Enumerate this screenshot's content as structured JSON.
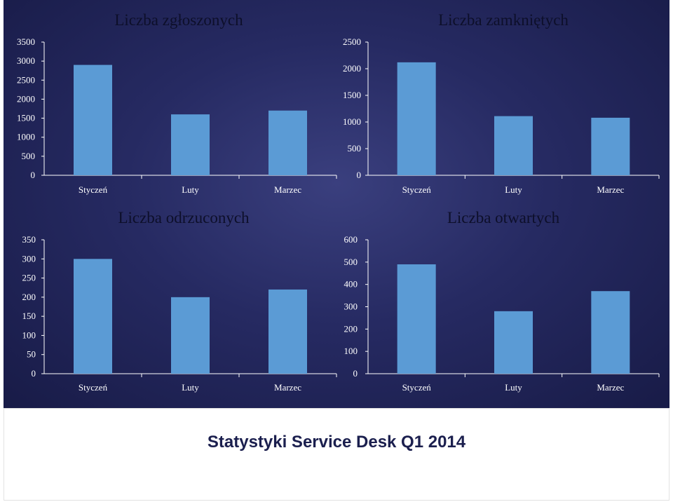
{
  "colors": {
    "bar": "#5b9bd5",
    "panel": "#262a62",
    "axis": "#ffffff",
    "title": "#0d0f2a"
  },
  "footer": {
    "title": "Statystyki Service Desk Q1 2014"
  },
  "chart_data": [
    {
      "type": "bar",
      "title": "Liczba zgłoszonych",
      "categories": [
        "Styczeń",
        "Luty",
        "Marzec"
      ],
      "values": [
        2900,
        1600,
        1700
      ],
      "ylim": [
        0,
        3500
      ],
      "yticks": [
        0,
        500,
        1000,
        1500,
        2000,
        2500,
        3000,
        3500
      ],
      "grid": false,
      "legend": "none"
    },
    {
      "type": "bar",
      "title": "Liczba zamkniętych",
      "categories": [
        "Styczeń",
        "Luty",
        "Marzec"
      ],
      "values": [
        2120,
        1110,
        1080
      ],
      "ylim": [
        0,
        2500
      ],
      "yticks": [
        0,
        500,
        1000,
        1500,
        2000,
        2500
      ],
      "grid": false,
      "legend": "none"
    },
    {
      "type": "bar",
      "title": "Liczba odrzuconych",
      "categories": [
        "Styczeń",
        "Luty",
        "Marzec"
      ],
      "values": [
        300,
        200,
        220
      ],
      "ylim": [
        0,
        350
      ],
      "yticks": [
        0,
        50,
        100,
        150,
        200,
        250,
        300,
        350
      ],
      "grid": false,
      "legend": "none"
    },
    {
      "type": "bar",
      "title": "Liczba otwartych",
      "categories": [
        "Styczeń",
        "Luty",
        "Marzec"
      ],
      "values": [
        490,
        280,
        370
      ],
      "ylim": [
        0,
        600
      ],
      "yticks": [
        0,
        100,
        200,
        300,
        400,
        500,
        600
      ],
      "grid": false,
      "legend": "none"
    }
  ]
}
